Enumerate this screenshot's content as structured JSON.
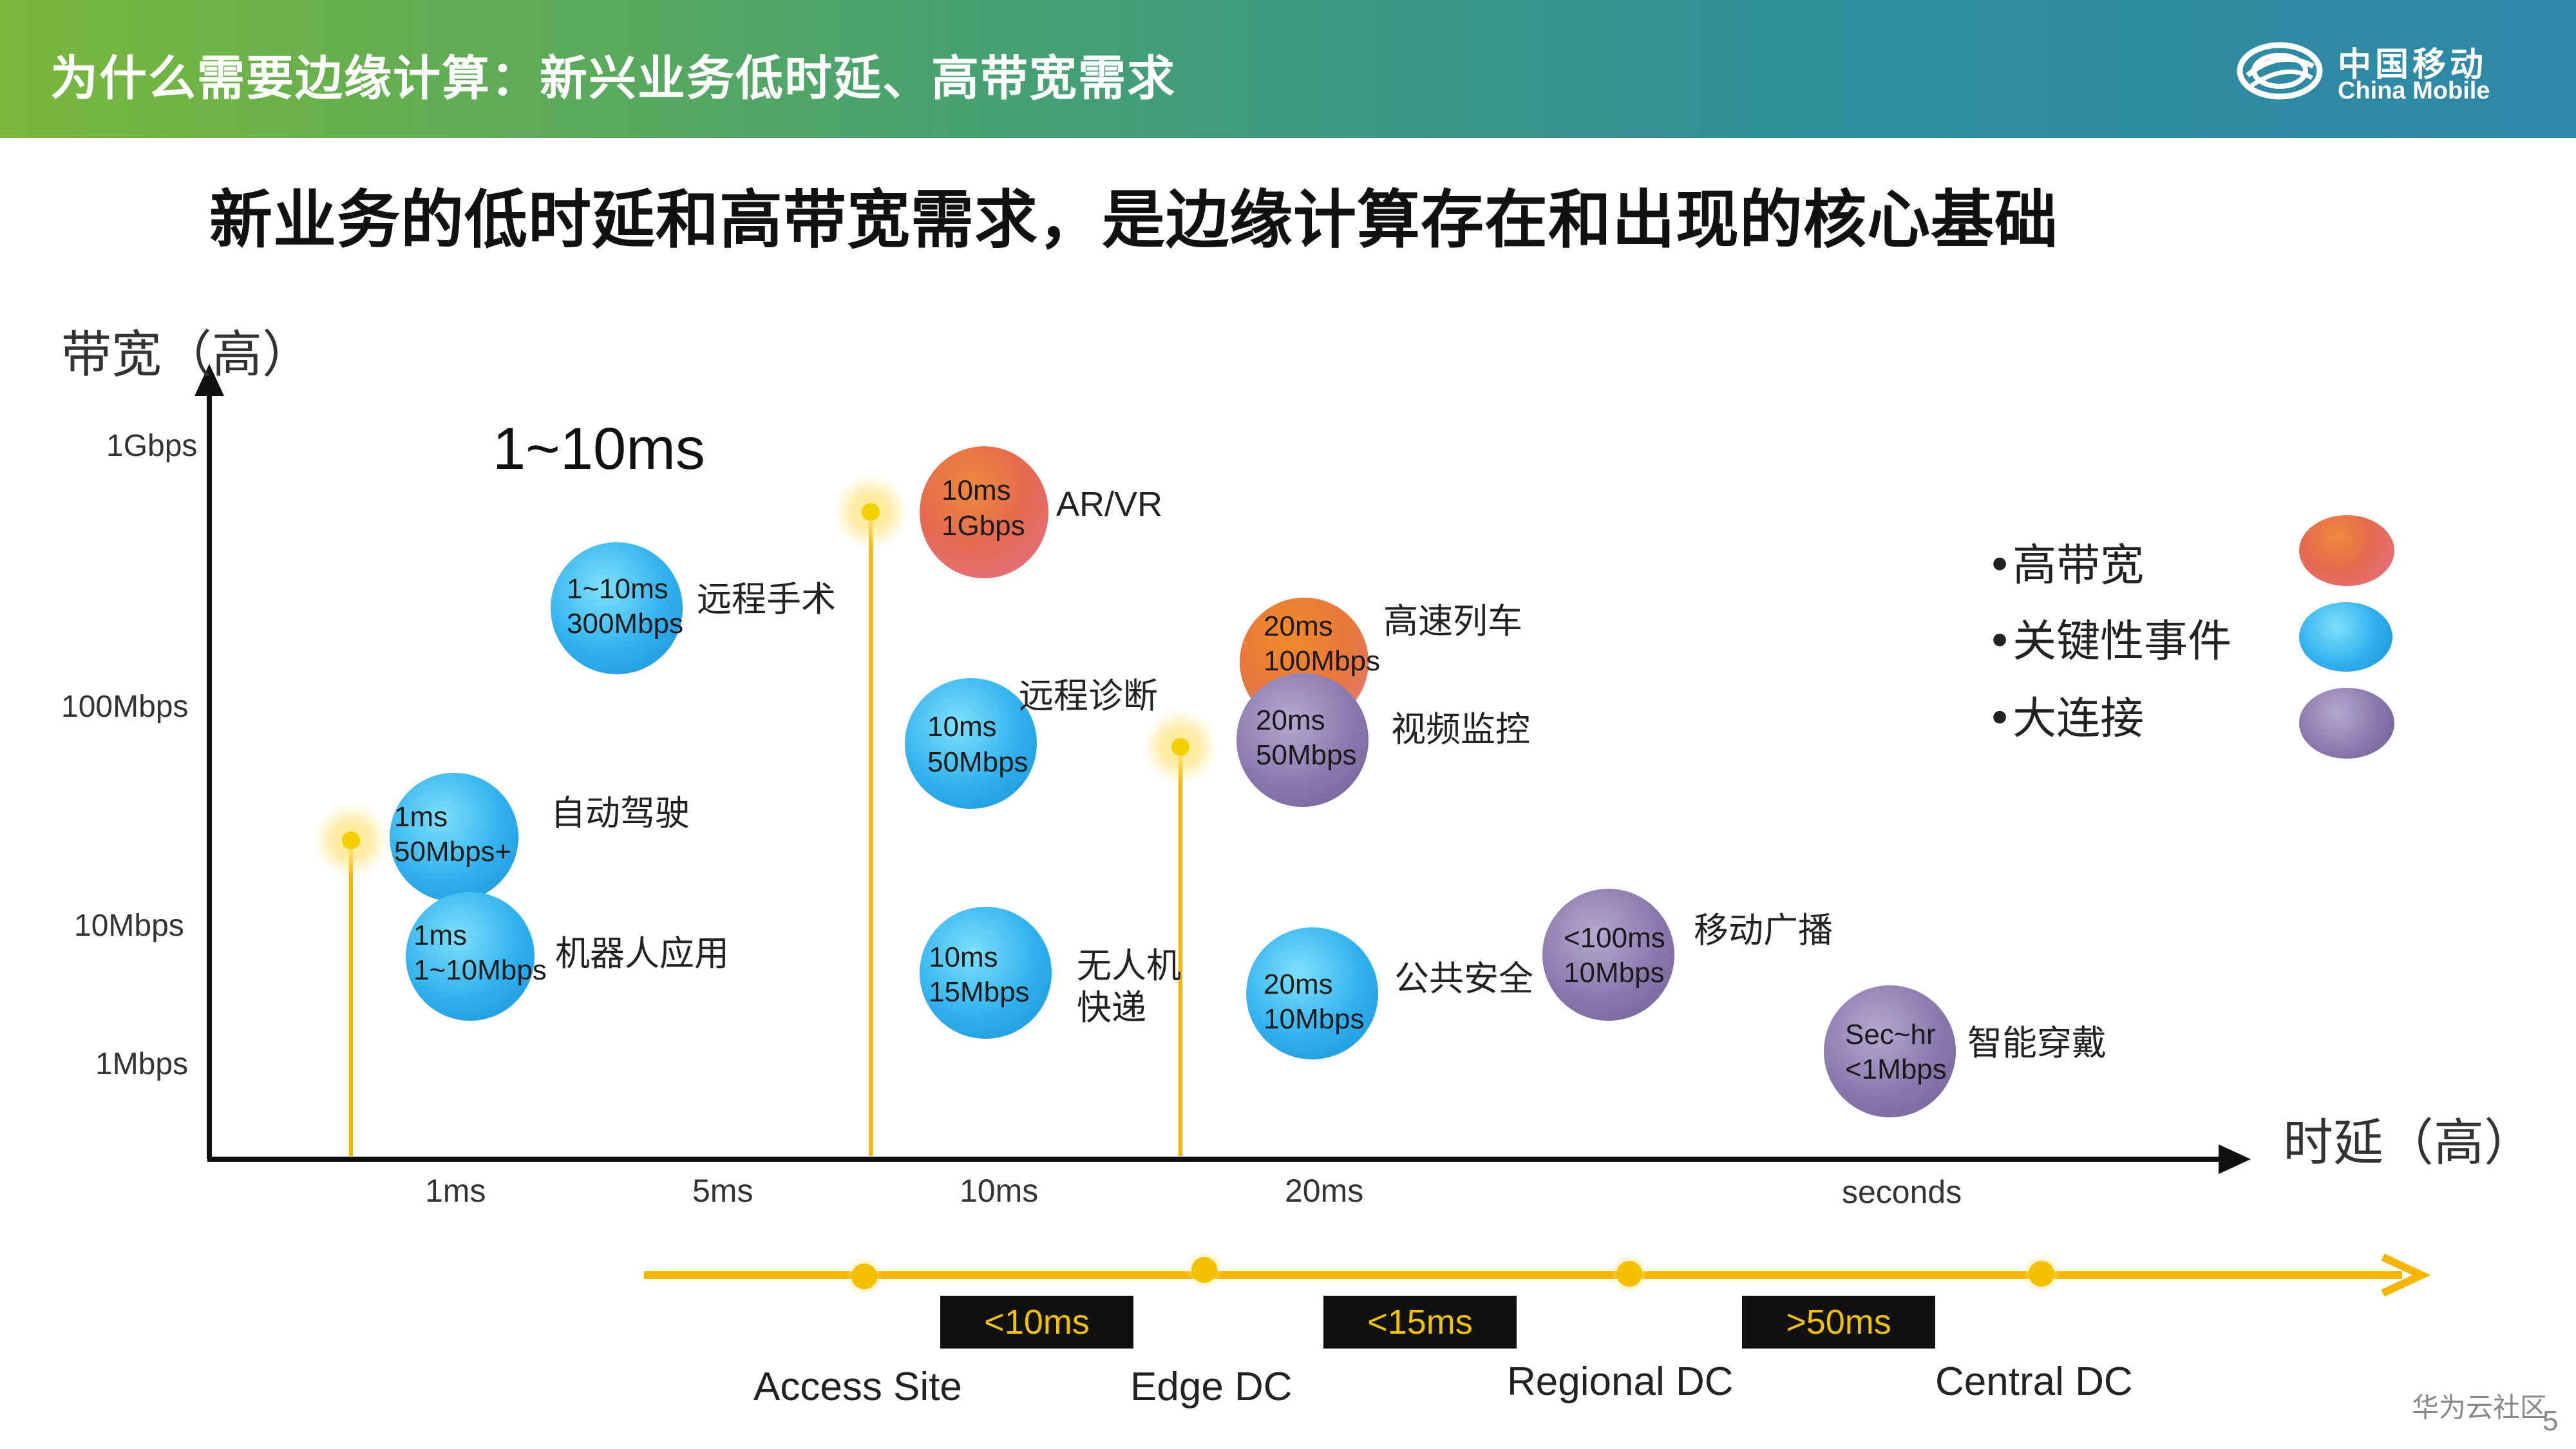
{
  "header": {
    "title": "为什么需要边缘计算：新兴业务低时延、高带宽需求"
  },
  "logo": {
    "cn": "中国移动",
    "en": "China Mobile"
  },
  "subtitle": "新业务的低时延和高带宽需求，是边缘计算存在和出现的核心基础",
  "axes": {
    "y_label": "带宽（高）",
    "x_label": "时延（高）",
    "y_ticks": [
      "1Gbps",
      "100Mbps",
      "10Mbps",
      "1Mbps"
    ],
    "x_ticks": [
      "1ms",
      "5ms",
      "10ms",
      "20ms",
      "seconds"
    ]
  },
  "range_label": "1~10ms",
  "bubbles": [
    {
      "latency": "10ms",
      "bandwidth": "1Gbps",
      "name": "AR/VR",
      "category": "高带宽"
    },
    {
      "latency": "1~10ms",
      "bandwidth": "300Mbps",
      "name": "远程手术",
      "category": "关键性事件"
    },
    {
      "latency": "20ms",
      "bandwidth": "100Mbps",
      "name": "高速列车",
      "category": "高带宽"
    },
    {
      "latency": "10ms",
      "bandwidth": "50Mbps",
      "name": "远程诊断",
      "category": "关键性事件"
    },
    {
      "latency": "20ms",
      "bandwidth": "50Mbps",
      "name": "视频监控",
      "category": "大连接"
    },
    {
      "latency": "1ms",
      "bandwidth": "50Mbps+",
      "name": "自动驾驶",
      "category": "关键性事件"
    },
    {
      "latency": "1ms",
      "bandwidth": "1~10Mbps",
      "name": "机器人应用",
      "category": "关键性事件"
    },
    {
      "latency": "10ms",
      "bandwidth": "15Mbps",
      "name_line1": "无人机",
      "name_line2": "快递",
      "category": "关键性事件"
    },
    {
      "latency": "20ms",
      "bandwidth": "10Mbps",
      "name": "公共安全",
      "category": "关键性事件"
    },
    {
      "latency": "<100ms",
      "bandwidth": "10Mbps",
      "name": "移动广播",
      "category": "大连接"
    },
    {
      "latency": "Sec~hr",
      "bandwidth": "<1Mbps",
      "name": "智能穿戴",
      "category": "大连接"
    }
  ],
  "legend": [
    {
      "label": "高带宽",
      "color": "#e66a4e"
    },
    {
      "label": "关键性事件",
      "color": "#2fb0ee"
    },
    {
      "label": "大连接",
      "color": "#8a78ad"
    }
  ],
  "legend_bullet": "•",
  "deployment": {
    "sites": [
      "Access Site",
      "Edge DC",
      "Regional DC",
      "Central DC"
    ],
    "latency_tags": [
      "<10ms",
      "<15ms",
      ">50ms"
    ],
    "line_color": "#f5b400"
  },
  "footer": {
    "watermark": "华为云社区",
    "page": "5"
  }
}
